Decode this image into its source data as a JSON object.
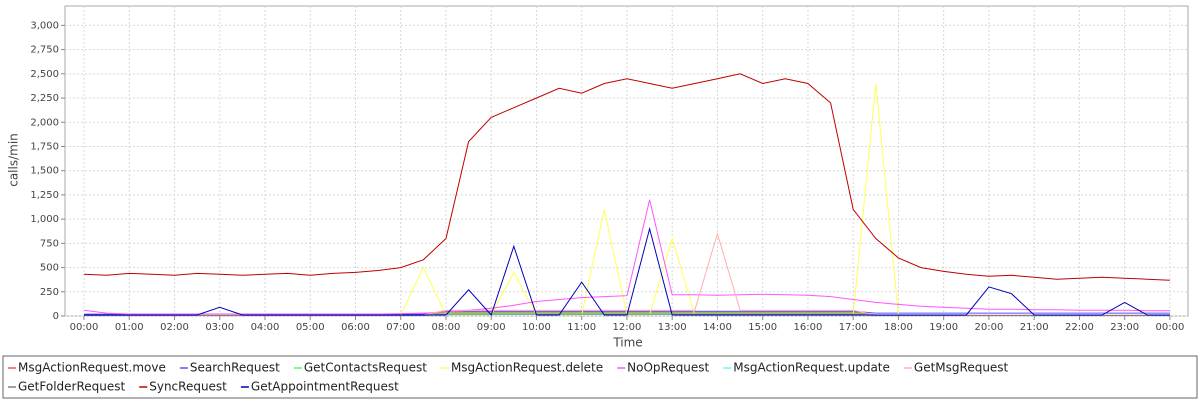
{
  "chart_data": {
    "type": "line",
    "x_label": "Time",
    "y_label": "calls/min",
    "x": [
      0,
      0.5,
      1,
      1.5,
      2,
      2.5,
      3,
      3.5,
      4,
      4.5,
      5,
      5.5,
      6,
      6.5,
      7,
      7.5,
      8,
      8.5,
      9,
      9.5,
      10,
      10.5,
      11,
      11.5,
      12,
      12.5,
      13,
      13.5,
      14,
      14.5,
      15,
      15.5,
      16,
      16.5,
      17,
      17.5,
      18,
      18.5,
      19,
      19.5,
      20,
      20.5,
      21,
      21.5,
      22,
      22.5,
      23,
      23.5,
      24
    ],
    "xlim": [
      -0.42,
      24.4
    ],
    "xticks": [
      {
        "value": 0,
        "label": "00:00"
      },
      {
        "value": 1,
        "label": "01:00"
      },
      {
        "value": 2,
        "label": "02:00"
      },
      {
        "value": 3,
        "label": "03:00"
      },
      {
        "value": 4,
        "label": "04:00"
      },
      {
        "value": 5,
        "label": "05:00"
      },
      {
        "value": 6,
        "label": "06:00"
      },
      {
        "value": 7,
        "label": "07:00"
      },
      {
        "value": 8,
        "label": "08:00"
      },
      {
        "value": 9,
        "label": "09:00"
      },
      {
        "value": 10,
        "label": "10:00"
      },
      {
        "value": 11,
        "label": "11:00"
      },
      {
        "value": 12,
        "label": "12:00"
      },
      {
        "value": 13,
        "label": "13:00"
      },
      {
        "value": 14,
        "label": "14:00"
      },
      {
        "value": 15,
        "label": "15:00"
      },
      {
        "value": 16,
        "label": "16:00"
      },
      {
        "value": 17,
        "label": "17:00"
      },
      {
        "value": 18,
        "label": "18:00"
      },
      {
        "value": 19,
        "label": "19:00"
      },
      {
        "value": 20,
        "label": "20:00"
      },
      {
        "value": 21,
        "label": "21:00"
      },
      {
        "value": 22,
        "label": "22:00"
      },
      {
        "value": 23,
        "label": "23:00"
      },
      {
        "value": 24,
        "label": "00:00"
      }
    ],
    "ylim": [
      0,
      3200
    ],
    "yticks": [
      0,
      250,
      500,
      750,
      {
        "value": 1000,
        "label": "1,000"
      },
      {
        "value": 1250,
        "label": "1,250"
      },
      {
        "value": 1500,
        "label": "1,500"
      },
      {
        "value": 1750,
        "label": "1,750"
      },
      {
        "value": 2000,
        "label": "2,000"
      },
      {
        "value": 2250,
        "label": "2,250"
      },
      {
        "value": 2500,
        "label": "2,500"
      },
      {
        "value": 2750,
        "label": "2,750"
      },
      {
        "value": 3000,
        "label": "3,000"
      }
    ],
    "grid": true,
    "legend": "bottom",
    "series": [
      {
        "name": "MsgActionRequest.move",
        "color": "#ff5555",
        "values": [
          10,
          10,
          10,
          10,
          10,
          10,
          10,
          10,
          10,
          10,
          10,
          10,
          10,
          10,
          10,
          10,
          40,
          40,
          40,
          40,
          40,
          40,
          40,
          40,
          40,
          40,
          40,
          40,
          40,
          40,
          40,
          40,
          40,
          40,
          40,
          10,
          10,
          10,
          10,
          10,
          10,
          10,
          10,
          10,
          10,
          10,
          10,
          10,
          10
        ]
      },
      {
        "name": "SearchRequest",
        "color": "#5555ff",
        "values": [
          20,
          20,
          20,
          20,
          20,
          20,
          20,
          20,
          20,
          20,
          20,
          20,
          20,
          20,
          20,
          20,
          50,
          50,
          50,
          50,
          50,
          50,
          50,
          50,
          50,
          50,
          50,
          50,
          50,
          50,
          50,
          50,
          50,
          50,
          50,
          30,
          30,
          30,
          30,
          30,
          30,
          30,
          30,
          30,
          30,
          30,
          30,
          30,
          30
        ]
      },
      {
        "name": "GetContactsRequest",
        "color": "#55ff55",
        "values": [
          5,
          5,
          5,
          5,
          5,
          5,
          5,
          5,
          5,
          5,
          5,
          5,
          5,
          5,
          5,
          5,
          30,
          30,
          30,
          30,
          30,
          30,
          30,
          30,
          30,
          30,
          30,
          30,
          30,
          30,
          30,
          30,
          30,
          30,
          30,
          5,
          5,
          5,
          5,
          5,
          5,
          5,
          5,
          5,
          5,
          5,
          5,
          5,
          5
        ]
      },
      {
        "name": "MsgActionRequest.delete",
        "color": "#ffff55",
        "values": [
          10,
          10,
          10,
          10,
          10,
          10,
          10,
          10,
          10,
          10,
          10,
          10,
          10,
          10,
          10,
          500,
          10,
          10,
          10,
          450,
          10,
          10,
          10,
          1100,
          10,
          10,
          800,
          10,
          10,
          10,
          10,
          10,
          10,
          10,
          10,
          2400,
          10,
          10,
          10,
          10,
          10,
          10,
          10,
          10,
          10,
          10,
          10,
          10,
          10
        ]
      },
      {
        "name": "NoOpRequest",
        "color": "#ff55ff",
        "values": [
          60,
          30,
          20,
          20,
          20,
          20,
          20,
          20,
          20,
          20,
          20,
          20,
          20,
          20,
          25,
          30,
          40,
          60,
          80,
          110,
          150,
          170,
          190,
          200,
          210,
          1200,
          220,
          220,
          215,
          220,
          225,
          220,
          215,
          200,
          170,
          140,
          120,
          100,
          90,
          80,
          70,
          70,
          65,
          65,
          60,
          60,
          60,
          55,
          55
        ]
      },
      {
        "name": "MsgActionRequest.update",
        "color": "#55ffff",
        "values": [
          5,
          5,
          5,
          5,
          5,
          5,
          5,
          5,
          5,
          5,
          5,
          5,
          5,
          5,
          5,
          5,
          15,
          15,
          15,
          15,
          15,
          15,
          15,
          15,
          15,
          15,
          15,
          15,
          15,
          15,
          15,
          15,
          15,
          15,
          15,
          5,
          5,
          5,
          5,
          5,
          5,
          5,
          5,
          5,
          5,
          5,
          5,
          5,
          5
        ]
      },
      {
        "name": "GetMsgRequest",
        "color": "#ffafaf",
        "values": [
          10,
          10,
          10,
          10,
          10,
          10,
          10,
          10,
          10,
          10,
          10,
          10,
          10,
          10,
          10,
          10,
          60,
          60,
          60,
          60,
          60,
          60,
          60,
          60,
          60,
          60,
          60,
          60,
          850,
          60,
          60,
          60,
          60,
          60,
          60,
          10,
          10,
          10,
          10,
          10,
          10,
          10,
          10,
          10,
          10,
          10,
          10,
          10,
          10
        ]
      },
      {
        "name": "GetFolderRequest",
        "color": "#808080",
        "values": [
          5,
          5,
          5,
          5,
          5,
          5,
          5,
          5,
          5,
          5,
          5,
          5,
          5,
          5,
          5,
          5,
          20,
          20,
          20,
          20,
          20,
          20,
          20,
          20,
          20,
          20,
          20,
          20,
          20,
          20,
          20,
          20,
          20,
          20,
          20,
          5,
          5,
          5,
          5,
          5,
          5,
          5,
          5,
          5,
          5,
          5,
          5,
          5,
          5
        ]
      },
      {
        "name": "SyncRequest",
        "color": "#c00000",
        "values": [
          430,
          420,
          440,
          430,
          420,
          440,
          430,
          420,
          430,
          440,
          420,
          440,
          450,
          470,
          500,
          580,
          800,
          1800,
          2050,
          2150,
          2250,
          2350,
          2300,
          2400,
          2450,
          2400,
          2350,
          2400,
          2450,
          2500,
          2400,
          2450,
          2400,
          2200,
          1100,
          800,
          600,
          500,
          460,
          430,
          410,
          420,
          400,
          380,
          390,
          400,
          390,
          380,
          370
        ]
      },
      {
        "name": "GetAppointmentRequest",
        "color": "#0000c0",
        "values": [
          10,
          10,
          10,
          10,
          10,
          10,
          90,
          10,
          10,
          10,
          10,
          10,
          10,
          10,
          10,
          10,
          10,
          270,
          10,
          720,
          10,
          10,
          350,
          10,
          10,
          900,
          10,
          10,
          10,
          10,
          10,
          10,
          10,
          10,
          10,
          10,
          10,
          10,
          10,
          10,
          300,
          230,
          10,
          10,
          10,
          10,
          140,
          10,
          10
        ]
      }
    ]
  }
}
